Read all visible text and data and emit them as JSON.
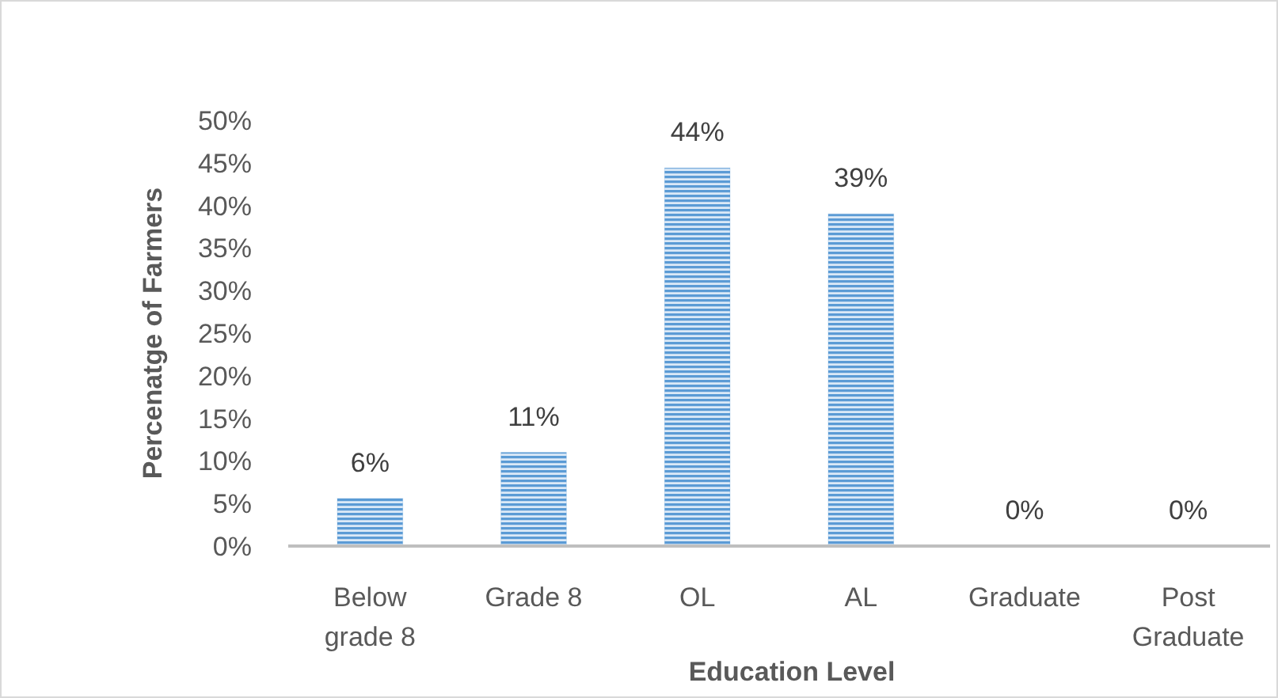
{
  "chart_data": {
    "type": "bar",
    "xlabel": "Education Level",
    "ylabel": "Percenatge of Farmers",
    "categories": [
      "Below grade 8",
      "Grade 8",
      "OL",
      "AL",
      "Graduate",
      "Post Graduate"
    ],
    "values": [
      5.6,
      11,
      44.4,
      39,
      0,
      0
    ],
    "value_labels": [
      "6%",
      "11%",
      "44%",
      "39%",
      "0%",
      "0%"
    ],
    "color": "#5b9bd5",
    "ylim": [
      0,
      50
    ],
    "yticks": [
      {
        "value": 0,
        "label": "0%"
      },
      {
        "value": 5,
        "label": "5%"
      },
      {
        "value": 10,
        "label": "10%"
      },
      {
        "value": 15,
        "label": "15%"
      },
      {
        "value": 20,
        "label": "20%"
      },
      {
        "value": 25,
        "label": "25%"
      },
      {
        "value": 30,
        "label": "30%"
      },
      {
        "value": 35,
        "label": "35%"
      },
      {
        "value": 40,
        "label": "40%"
      },
      {
        "value": 45,
        "label": "45%"
      },
      {
        "value": 50,
        "label": "50%"
      }
    ]
  }
}
